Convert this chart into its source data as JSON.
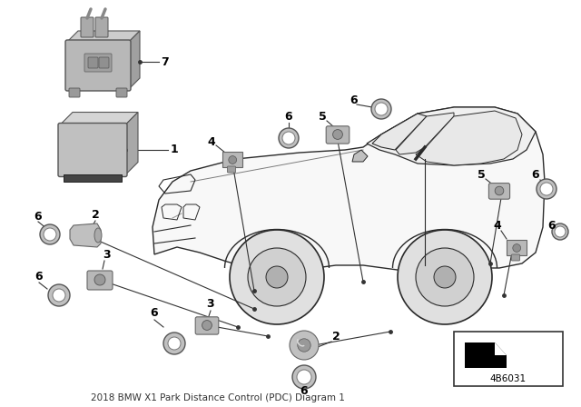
{
  "bg_color": "#ffffff",
  "part_number": "4B6031",
  "fig_width": 6.4,
  "fig_height": 4.48,
  "dpi": 100,
  "line_color": "#2a2a2a",
  "label_fontsize": 9,
  "car": {
    "body_color": "#f0f0f0",
    "line_color": "#2a2a2a",
    "line_width": 1.0
  },
  "component_color": "#b8b8b8",
  "component_dark": "#888888",
  "component_light": "#d8d8d8"
}
